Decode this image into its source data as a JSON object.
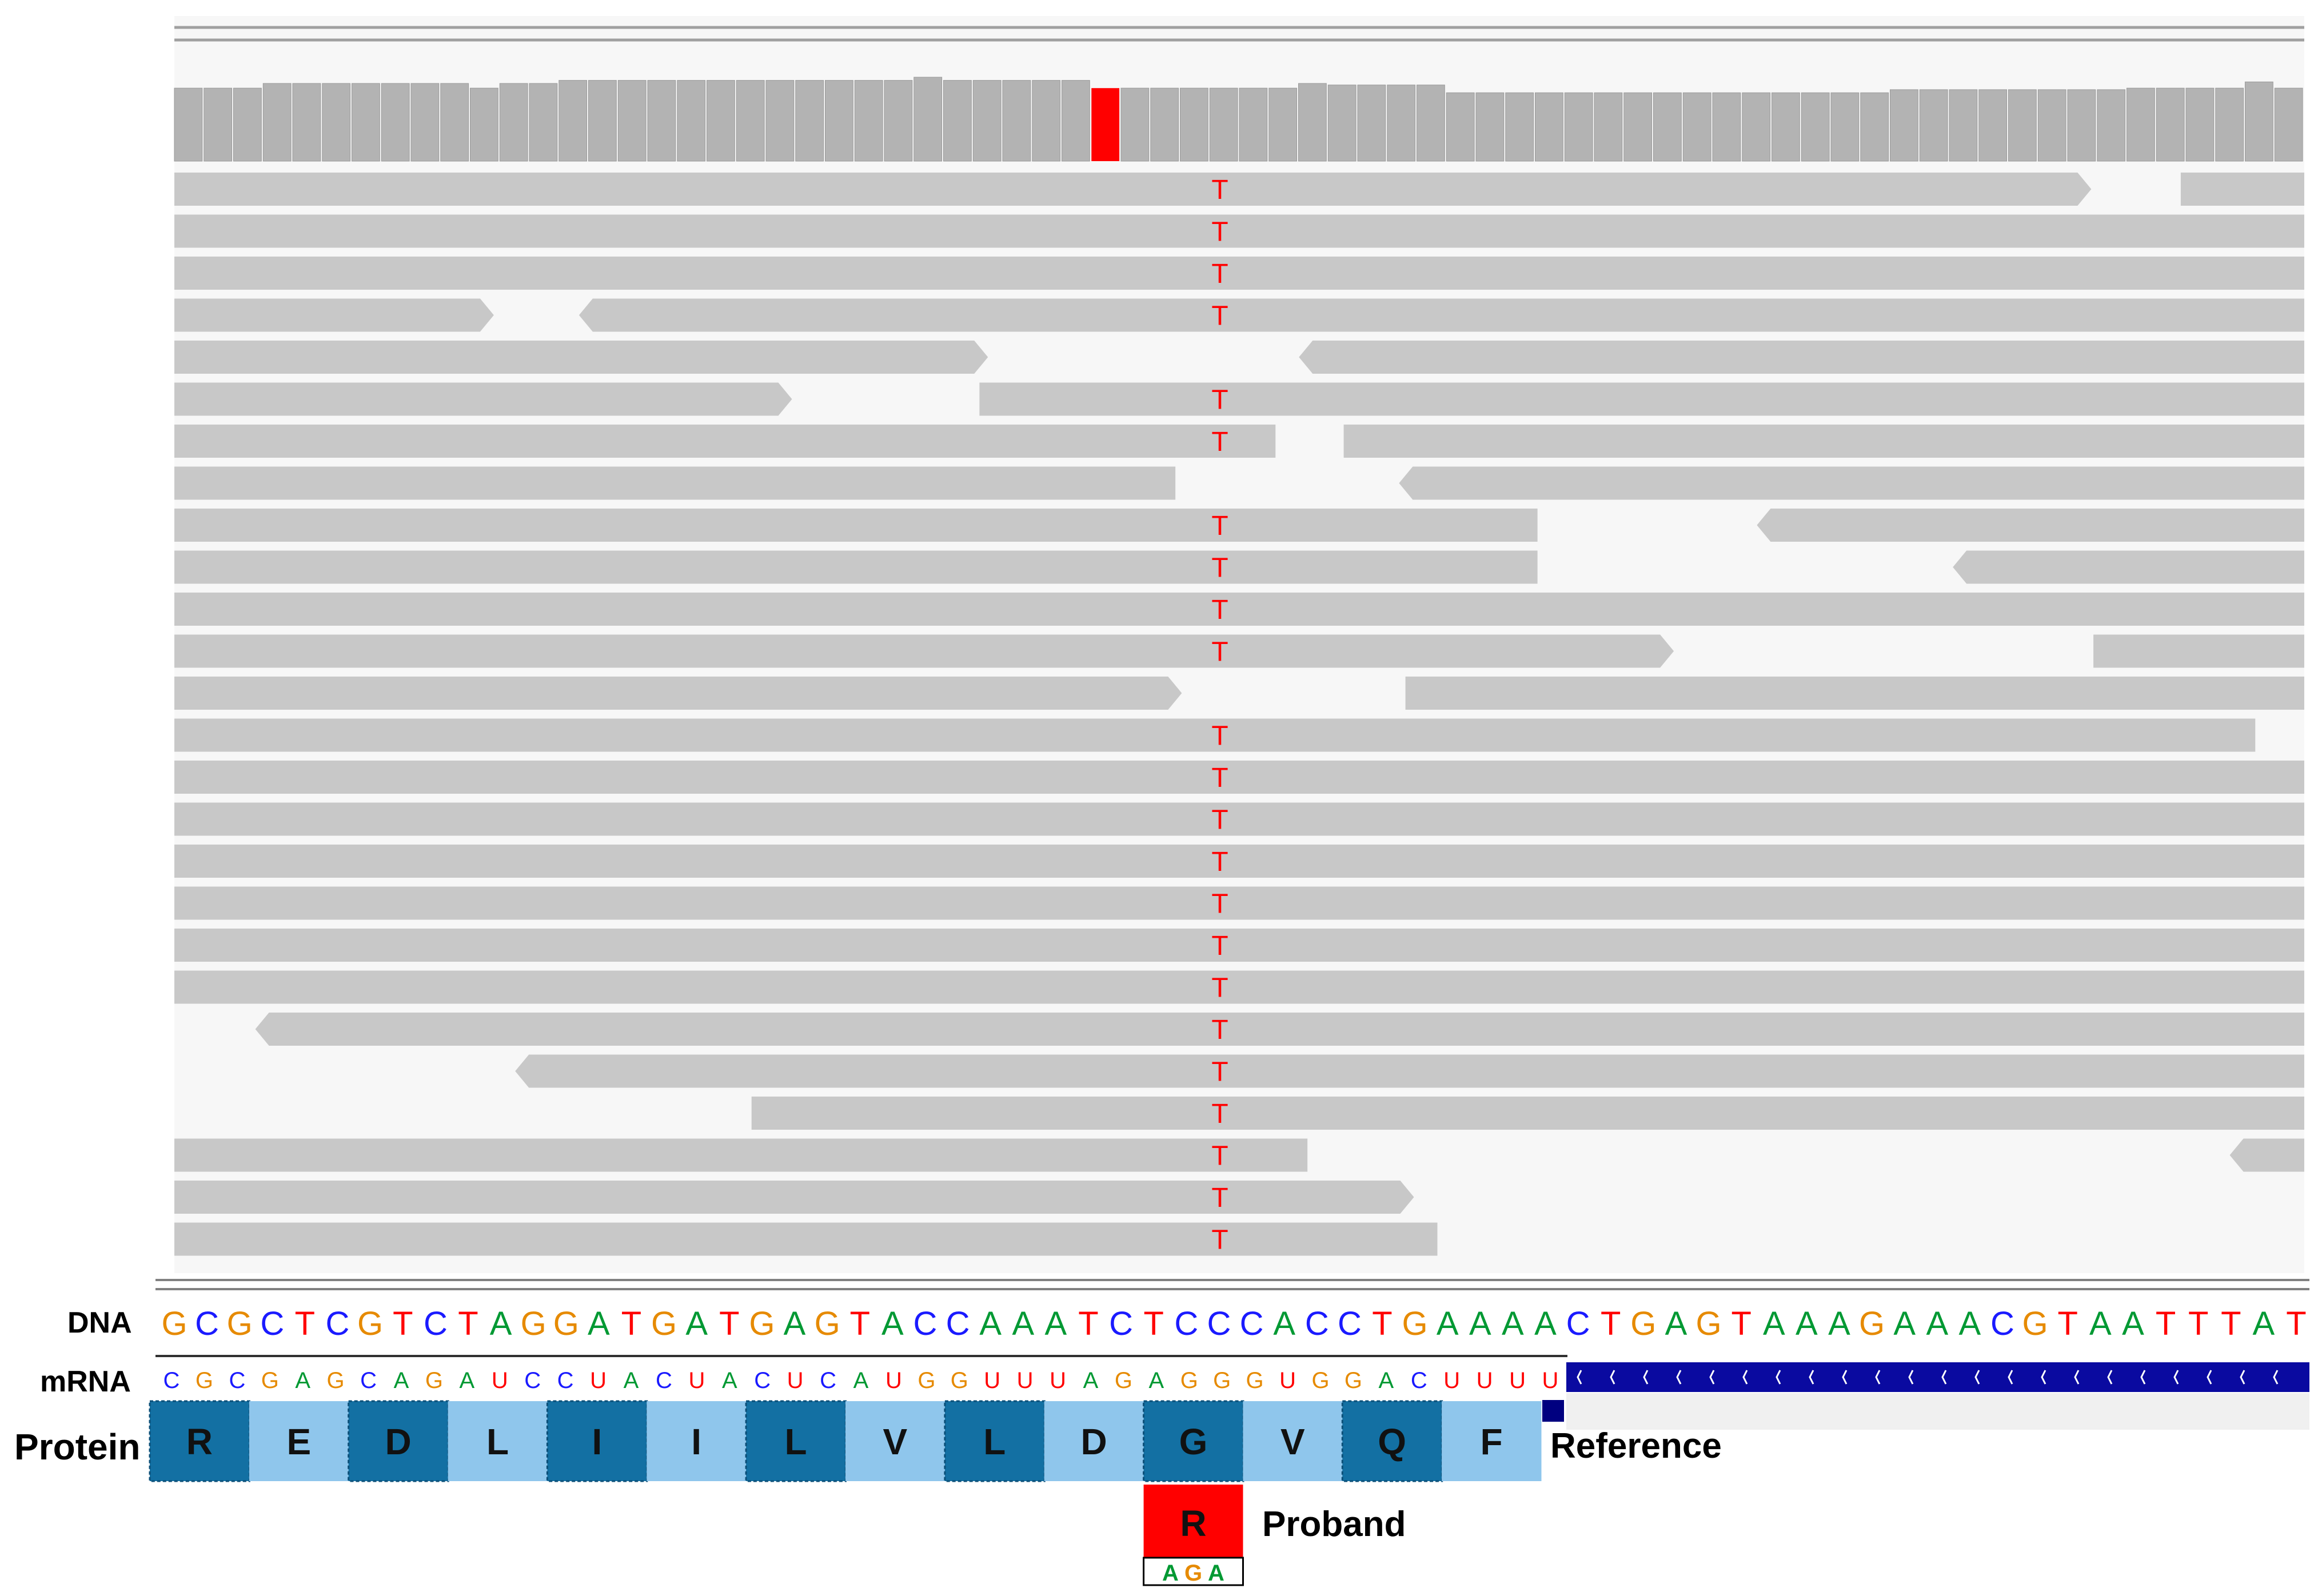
{
  "colors": {
    "background_panel": "#f7f7f7",
    "read": "#c8c8c8",
    "coverage": "#b3b3b3",
    "mismatch": "#ff0000",
    "base_A": "#009933",
    "base_C": "#1a1aff",
    "base_G": "#e68a00",
    "base_T": "#ff0000",
    "base_U": "#ff0000",
    "protein_dark": "#1370a3",
    "protein_light": "#8fc6ec",
    "transcript_bar": "#0a0aa0"
  },
  "labels": {
    "dna": "DNA",
    "mrna": "mRNA",
    "protein": "Protein",
    "reference": "Reference",
    "proband": "Proband"
  },
  "dna_sequence": [
    "G",
    "C",
    "G",
    "C",
    "T",
    "C",
    "G",
    "T",
    "C",
    "T",
    "A",
    "G",
    "G",
    "A",
    "T",
    "G",
    "A",
    "T",
    "G",
    "A",
    "G",
    "T",
    "A",
    "C",
    "C",
    "A",
    "A",
    "A",
    "T",
    "C",
    "T",
    "C",
    "C",
    "C",
    "A",
    "C",
    "C",
    "T",
    "G",
    "A",
    "A",
    "A",
    "A",
    "C",
    "T",
    "G",
    "A",
    "G",
    "T",
    "A",
    "A",
    "A",
    "G",
    "A",
    "A",
    "A",
    "C",
    "G",
    "T",
    "A",
    "A",
    "T",
    "T",
    "T",
    "A",
    "T"
  ],
  "mrna_sequence": [
    "C",
    "G",
    "C",
    "G",
    "A",
    "G",
    "C",
    "A",
    "G",
    "A",
    "U",
    "C",
    "C",
    "U",
    "A",
    "C",
    "U",
    "A",
    "C",
    "U",
    "C",
    "A",
    "U",
    "G",
    "G",
    "U",
    "U",
    "U",
    "A",
    "G",
    "A",
    "G",
    "G",
    "G",
    "U",
    "G",
    "G",
    "A",
    "C",
    "U",
    "U",
    "U",
    "U"
  ],
  "protein_reference": [
    "R",
    "E",
    "D",
    "L",
    "I",
    "I",
    "L",
    "V",
    "L",
    "D",
    "G",
    "V",
    "Q",
    "F"
  ],
  "proband": {
    "residue": "R",
    "codon": [
      "A",
      "G",
      "A"
    ],
    "replaces_index": 10
  },
  "variant": {
    "alt_base": "T",
    "coverage_bin": 31
  },
  "coverage_relative": [
    0.94,
    0.94,
    0.94,
    1.0,
    1.0,
    1.0,
    1.0,
    1.0,
    1.0,
    1.0,
    0.94,
    1.0,
    1.0,
    1.04,
    1.04,
    1.04,
    1.04,
    1.04,
    1.04,
    1.04,
    1.04,
    1.04,
    1.04,
    1.04,
    1.04,
    1.08,
    1.04,
    1.04,
    1.04,
    1.04,
    1.04,
    0.94,
    0.94,
    0.94,
    0.94,
    0.94,
    0.94,
    0.94,
    1.0,
    0.98,
    0.98,
    0.98,
    0.98,
    0.88,
    0.88,
    0.88,
    0.88,
    0.88,
    0.88,
    0.88,
    0.88,
    0.88,
    0.88,
    0.88,
    0.88,
    0.88,
    0.88,
    0.88,
    0.92,
    0.92,
    0.92,
    0.92,
    0.92,
    0.92,
    0.92,
    0.92,
    0.94,
    0.94,
    0.94,
    0.94,
    1.02,
    0.94
  ],
  "reads": [
    {
      "segments": [
        [
          0.0,
          0.9
        ]
      ],
      "pointed_end": [
        0
      ],
      "extra": [
        [
          0.942,
          1.0
        ]
      ]
    },
    {
      "segments": [
        [
          0.0,
          1.0
        ]
      ]
    },
    {
      "segments": [
        [
          0.0,
          1.0
        ]
      ]
    },
    {
      "segments": [
        [
          0.0,
          0.15
        ],
        [
          0.19,
          1.0
        ]
      ],
      "pointed_end": [
        0
      ],
      "pointed_start": [
        1
      ]
    },
    {
      "segments": [
        [
          0.0,
          0.382
        ],
        [
          0.528,
          1.0
        ]
      ],
      "pointed_end": [
        0
      ],
      "pointed_start": [
        1
      ],
      "no_variant": true
    },
    {
      "segments": [
        [
          0.0,
          0.29
        ],
        [
          0.378,
          1.0
        ]
      ],
      "pointed_end": [
        0
      ]
    },
    {
      "segments": [
        [
          0.0,
          0.517
        ],
        [
          0.549,
          1.0
        ]
      ]
    },
    {
      "segments": [
        [
          0.0,
          0.47
        ],
        [
          0.575,
          1.0
        ]
      ],
      "pointed_start": [
        1
      ],
      "no_variant": true
    },
    {
      "segments": [
        [
          0.0,
          0.64
        ],
        [
          0.743,
          1.0
        ]
      ],
      "pointed_start": [
        1
      ]
    },
    {
      "segments": [
        [
          0.0,
          0.64
        ],
        [
          0.835,
          1.0
        ]
      ],
      "pointed_start": [
        1
      ]
    },
    {
      "segments": [
        [
          0.0,
          1.0
        ]
      ]
    },
    {
      "segments": [
        [
          0.0,
          0.704
        ],
        [
          0.901,
          1.0
        ]
      ],
      "pointed_end": [
        0
      ]
    },
    {
      "segments": [
        [
          0.0,
          0.473
        ],
        [
          0.578,
          1.0
        ]
      ],
      "pointed_end": [
        0
      ],
      "no_variant": true
    },
    {
      "segments": [
        [
          0.0,
          0.977
        ]
      ]
    },
    {
      "segments": [
        [
          0.0,
          1.0
        ]
      ]
    },
    {
      "segments": [
        [
          0.0,
          1.0
        ]
      ]
    },
    {
      "segments": [
        [
          0.0,
          1.0
        ]
      ]
    },
    {
      "segments": [
        [
          0.0,
          1.0
        ]
      ]
    },
    {
      "segments": [
        [
          0.0,
          1.0
        ]
      ]
    },
    {
      "segments": [
        [
          0.0,
          1.0
        ]
      ]
    },
    {
      "segments": [
        [
          0.038,
          1.0
        ]
      ],
      "pointed_start": [
        0
      ]
    },
    {
      "segments": [
        [
          0.16,
          1.0
        ]
      ],
      "pointed_start": [
        0
      ]
    },
    {
      "segments": [
        [
          0.271,
          1.0
        ]
      ]
    },
    {
      "segments": [
        [
          0.0,
          0.532
        ],
        [
          0.965,
          1.0
        ]
      ],
      "pointed_start": [
        1
      ]
    },
    {
      "segments": [
        [
          0.0,
          0.582
        ]
      ],
      "pointed_end": [
        0
      ]
    },
    {
      "segments": [
        [
          0.0,
          0.593
        ]
      ]
    }
  ]
}
